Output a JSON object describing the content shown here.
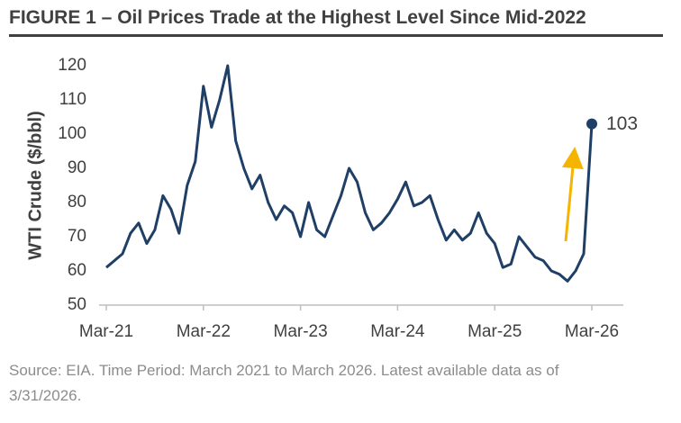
{
  "chart_data": {
    "type": "line",
    "title": "FIGURE 1 – Oil Prices Trade at the Highest Level Since Mid-2022",
    "y_label": "WTI Crude ($/bbl)",
    "source": "Source: EIA. Time Period: March 2021 to March 2026. Latest available data as of 3/31/2026.",
    "x": [
      "Mar-21",
      "Apr-21",
      "May-21",
      "Jun-21",
      "Jul-21",
      "Aug-21",
      "Sep-21",
      "Oct-21",
      "Nov-21",
      "Dec-21",
      "Jan-22",
      "Feb-22",
      "Mar-22",
      "Apr-22",
      "May-22",
      "Jun-22",
      "Jul-22",
      "Aug-22",
      "Sep-22",
      "Oct-22",
      "Nov-22",
      "Dec-22",
      "Jan-23",
      "Feb-23",
      "Mar-23",
      "Apr-23",
      "May-23",
      "Jun-23",
      "Jul-23",
      "Aug-23",
      "Sep-23",
      "Oct-23",
      "Nov-23",
      "Dec-23",
      "Jan-24",
      "Feb-24",
      "Mar-24",
      "Apr-24",
      "May-24",
      "Jun-24",
      "Jul-24",
      "Aug-24",
      "Sep-24",
      "Oct-24",
      "Nov-24",
      "Dec-24",
      "Jan-25",
      "Feb-25",
      "Mar-25",
      "Apr-25",
      "May-25",
      "Jun-25",
      "Jul-25",
      "Aug-25",
      "Sep-25",
      "Oct-25",
      "Nov-25",
      "Dec-25",
      "Jan-26",
      "Feb-26",
      "Mar-26"
    ],
    "series": [
      {
        "name": "WTI Crude",
        "color": "#1f3f66",
        "values": [
          61,
          63,
          65,
          71,
          74,
          68,
          72,
          82,
          78,
          71,
          85,
          92,
          114,
          102,
          110,
          120,
          98,
          90,
          84,
          88,
          80,
          75,
          79,
          77,
          70,
          80,
          72,
          70,
          76,
          82,
          90,
          86,
          77,
          72,
          74,
          77,
          81,
          86,
          79,
          80,
          82,
          75,
          69,
          72,
          69,
          71,
          77,
          71,
          68,
          61,
          62,
          70,
          67,
          64,
          63,
          60,
          59,
          57,
          60,
          65,
          103
        ]
      }
    ],
    "xticks": [
      "Mar-21",
      "Mar-22",
      "Mar-23",
      "Mar-24",
      "Mar-25",
      "Mar-26"
    ],
    "ylim": [
      50,
      120
    ],
    "yticks": [
      50,
      60,
      70,
      80,
      90,
      100,
      110,
      120
    ],
    "grid": false
  }
}
